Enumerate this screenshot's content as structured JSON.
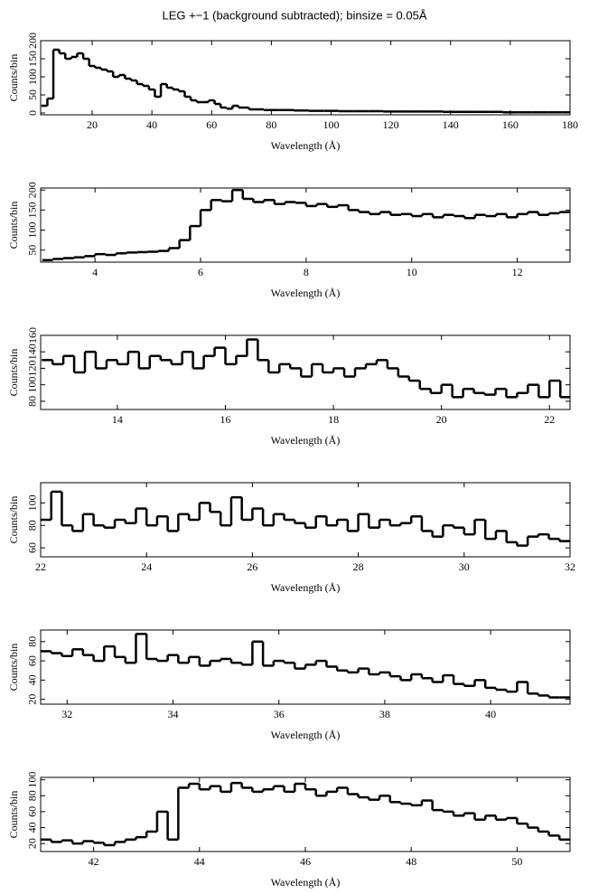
{
  "title": "LEG +−1 (background subtracted); binsize = 0.05Å",
  "chart_data": [
    {
      "type": "step",
      "xlabel": "Wavelength (Å)",
      "ylabel": "Counts/bin",
      "xlim": [
        2.75,
        180
      ],
      "ylim": [
        -5,
        200
      ],
      "xticks": [
        20,
        40,
        60,
        80,
        100,
        120,
        140,
        160,
        180
      ],
      "yticks": [
        0,
        50,
        100,
        150,
        200
      ],
      "x": [
        4,
        6,
        8,
        10,
        12,
        14,
        16,
        18,
        20,
        22,
        24,
        26,
        28,
        30,
        32,
        34,
        36,
        38,
        40,
        42,
        44,
        46,
        48,
        50,
        52,
        54,
        56,
        58,
        60,
        62,
        64,
        66,
        68,
        70,
        75,
        80,
        85,
        90,
        95,
        100,
        105,
        110,
        115,
        120,
        125,
        130,
        135,
        140,
        145,
        150,
        155,
        160,
        165,
        170,
        175,
        180
      ],
      "values": [
        20,
        40,
        175,
        165,
        150,
        155,
        165,
        150,
        130,
        125,
        120,
        115,
        100,
        105,
        95,
        90,
        80,
        75,
        65,
        45,
        80,
        70,
        65,
        60,
        45,
        35,
        30,
        30,
        35,
        25,
        15,
        12,
        20,
        15,
        10,
        8,
        8,
        7,
        6,
        6,
        5,
        5,
        5,
        4,
        4,
        4,
        4,
        3,
        3,
        3,
        3,
        2,
        2,
        2,
        2,
        2
      ]
    },
    {
      "type": "step",
      "xlabel": "Wavelength (Å)",
      "ylabel": "Counts/bin",
      "xlim": [
        2.97,
        13
      ],
      "ylim": [
        20,
        205
      ],
      "xticks": [
        4,
        6,
        8,
        10,
        12
      ],
      "yticks": [
        50,
        100,
        150,
        200
      ],
      "x": [
        3.1,
        3.3,
        3.5,
        3.7,
        3.9,
        4.1,
        4.3,
        4.5,
        4.7,
        4.9,
        5.1,
        5.3,
        5.5,
        5.7,
        5.9,
        6.1,
        6.3,
        6.5,
        6.7,
        6.9,
        7.1,
        7.3,
        7.5,
        7.7,
        7.9,
        8.1,
        8.3,
        8.5,
        8.7,
        8.9,
        9.1,
        9.3,
        9.5,
        9.7,
        9.9,
        10.1,
        10.3,
        10.5,
        10.7,
        10.9,
        11.1,
        11.3,
        11.5,
        11.7,
        11.9,
        12.1,
        12.3,
        12.5,
        12.7,
        12.9
      ],
      "values": [
        25,
        28,
        30,
        32,
        35,
        40,
        38,
        42,
        44,
        45,
        46,
        48,
        55,
        75,
        110,
        150,
        175,
        172,
        200,
        178,
        170,
        175,
        165,
        170,
        168,
        160,
        165,
        158,
        162,
        150,
        145,
        140,
        145,
        138,
        140,
        135,
        140,
        132,
        138,
        135,
        130,
        138,
        135,
        140,
        132,
        140,
        145,
        138,
        142,
        145
      ]
    },
    {
      "type": "step",
      "xlabel": "Wavelength (Å)",
      "ylabel": "Counts/bin",
      "xlim": [
        12.58,
        22.38
      ],
      "ylim": [
        70,
        160
      ],
      "xticks": [
        14,
        16,
        18,
        20,
        22
      ],
      "yticks": [
        80,
        100,
        120,
        140,
        160
      ],
      "x": [
        12.7,
        12.9,
        13.1,
        13.3,
        13.5,
        13.7,
        13.9,
        14.1,
        14.3,
        14.5,
        14.7,
        14.9,
        15.1,
        15.3,
        15.5,
        15.7,
        15.9,
        16.1,
        16.3,
        16.5,
        16.7,
        16.9,
        17.1,
        17.3,
        17.5,
        17.7,
        17.9,
        18.1,
        18.3,
        18.5,
        18.7,
        18.9,
        19.1,
        19.3,
        19.5,
        19.7,
        19.9,
        20.1,
        20.3,
        20.5,
        20.7,
        20.9,
        21.1,
        21.3,
        21.5,
        21.7,
        21.9,
        22.1,
        22.3
      ],
      "values": [
        130,
        125,
        135,
        115,
        140,
        120,
        130,
        125,
        140,
        120,
        135,
        130,
        125,
        140,
        120,
        135,
        145,
        125,
        135,
        155,
        130,
        115,
        125,
        120,
        110,
        125,
        115,
        120,
        110,
        120,
        125,
        130,
        120,
        110,
        105,
        95,
        90,
        100,
        85,
        95,
        90,
        88,
        95,
        85,
        90,
        100,
        85,
        105,
        85
      ]
    },
    {
      "type": "step",
      "xlabel": "Wavelength (Å)",
      "ylabel": "Counts/bin",
      "xlim": [
        22,
        32
      ],
      "ylim": [
        52,
        118
      ],
      "xticks": [
        22,
        24,
        26,
        28,
        30,
        32
      ],
      "yticks": [
        60,
        80,
        100
      ],
      "x": [
        22.1,
        22.3,
        22.5,
        22.7,
        22.9,
        23.1,
        23.3,
        23.5,
        23.7,
        23.9,
        24.1,
        24.3,
        24.5,
        24.7,
        24.9,
        25.1,
        25.3,
        25.5,
        25.7,
        25.9,
        26.1,
        26.3,
        26.5,
        26.7,
        26.9,
        27.1,
        27.3,
        27.5,
        27.7,
        27.9,
        28.1,
        28.3,
        28.5,
        28.7,
        28.9,
        29.1,
        29.3,
        29.5,
        29.7,
        29.9,
        30.1,
        30.3,
        30.5,
        30.7,
        30.9,
        31.1,
        31.3,
        31.5,
        31.7,
        31.9
      ],
      "values": [
        85,
        110,
        80,
        75,
        90,
        80,
        78,
        85,
        82,
        95,
        80,
        88,
        75,
        90,
        85,
        100,
        92,
        80,
        105,
        85,
        95,
        80,
        90,
        85,
        82,
        78,
        88,
        80,
        85,
        75,
        90,
        78,
        85,
        80,
        82,
        88,
        75,
        70,
        80,
        78,
        72,
        85,
        68,
        75,
        65,
        62,
        70,
        72,
        68,
        66
      ]
    },
    {
      "type": "step",
      "xlabel": "Wavelength (Å)",
      "ylabel": "Counts/bin",
      "xlim": [
        31.5,
        41.5
      ],
      "ylim": [
        15,
        92
      ],
      "xticks": [
        32,
        34,
        36,
        38,
        40
      ],
      "yticks": [
        20,
        40,
        60,
        80
      ],
      "x": [
        31.6,
        31.8,
        32,
        32.2,
        32.4,
        32.6,
        32.8,
        33,
        33.2,
        33.4,
        33.6,
        33.8,
        34,
        34.2,
        34.4,
        34.6,
        34.8,
        35,
        35.2,
        35.4,
        35.6,
        35.8,
        36,
        36.2,
        36.4,
        36.6,
        36.8,
        37,
        37.2,
        37.4,
        37.6,
        37.8,
        38,
        38.2,
        38.4,
        38.6,
        38.8,
        39,
        39.2,
        39.4,
        39.6,
        39.8,
        40,
        40.2,
        40.4,
        40.6,
        40.8,
        41,
        41.2,
        41.4
      ],
      "values": [
        70,
        68,
        65,
        72,
        66,
        60,
        75,
        64,
        58,
        88,
        62,
        60,
        66,
        58,
        64,
        55,
        60,
        62,
        58,
        56,
        80,
        55,
        60,
        58,
        52,
        56,
        60,
        54,
        50,
        48,
        52,
        46,
        48,
        44,
        40,
        46,
        42,
        38,
        45,
        36,
        34,
        40,
        32,
        30,
        28,
        38,
        26,
        24,
        22,
        22
      ]
    },
    {
      "type": "step",
      "xlabel": "Wavelength (Å)",
      "ylabel": "Counts/bin",
      "xlim": [
        41,
        51
      ],
      "ylim": [
        10,
        103
      ],
      "xticks": [
        42,
        44,
        46,
        48,
        50
      ],
      "yticks": [
        20,
        40,
        60,
        80,
        100
      ],
      "x": [
        41.1,
        41.3,
        41.5,
        41.7,
        41.9,
        42.1,
        42.3,
        42.5,
        42.7,
        42.9,
        43.1,
        43.3,
        43.5,
        43.7,
        43.9,
        44.1,
        44.3,
        44.5,
        44.7,
        44.9,
        45.1,
        45.3,
        45.5,
        45.7,
        45.9,
        46.1,
        46.3,
        46.5,
        46.7,
        46.9,
        47.1,
        47.3,
        47.5,
        47.7,
        47.9,
        48.1,
        48.3,
        48.5,
        48.7,
        48.9,
        49.1,
        49.3,
        49.5,
        49.7,
        49.9,
        50.1,
        50.3,
        50.5,
        50.7,
        50.9
      ],
      "values": [
        25,
        22,
        24,
        20,
        23,
        21,
        18,
        22,
        25,
        28,
        35,
        60,
        25,
        90,
        95,
        88,
        92,
        85,
        96,
        90,
        85,
        88,
        92,
        85,
        95,
        88,
        80,
        85,
        90,
        82,
        78,
        75,
        80,
        72,
        70,
        68,
        74,
        62,
        60,
        55,
        58,
        50,
        55,
        50,
        52,
        45,
        40,
        35,
        30,
        25
      ]
    }
  ]
}
